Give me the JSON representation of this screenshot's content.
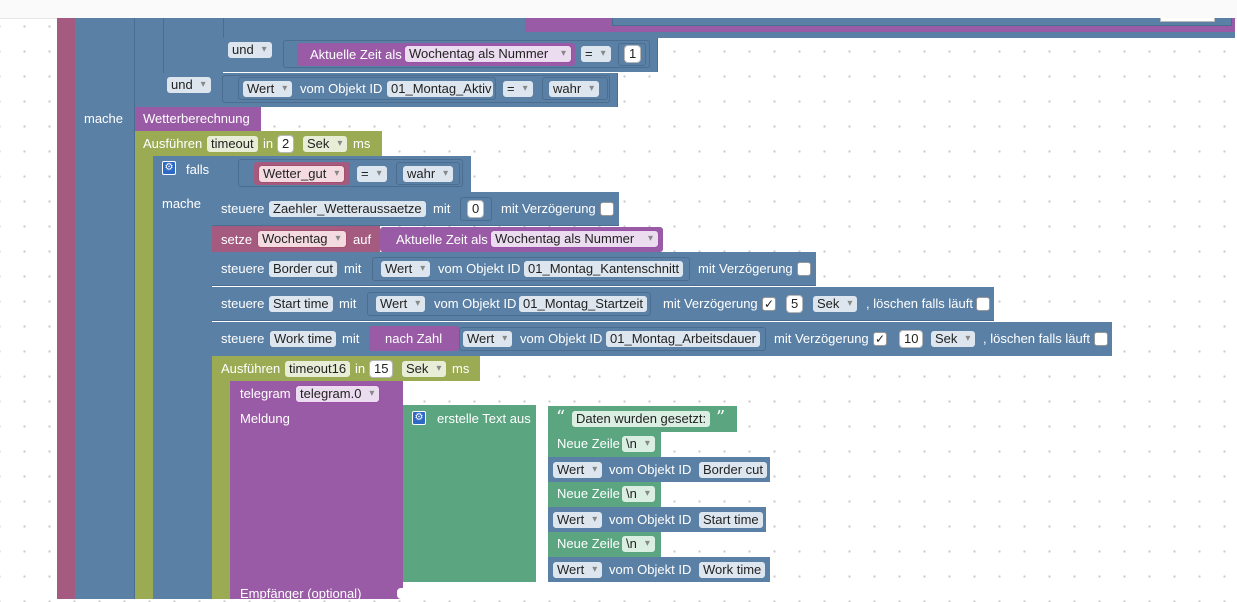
{
  "colors": {
    "logic": "#5b80a5",
    "timer": "#9aab54",
    "function": "#995ba5",
    "variable": "#a55b80",
    "text": "#5ba580"
  },
  "icons": {
    "gear": "gear-icon",
    "dropdown": "chevron-down-icon"
  },
  "cond_und_wochentag": {
    "und": "und",
    "label": "Aktuelle Zeit als",
    "field": "Wochentag als Nummer",
    "op": "=",
    "value": "1"
  },
  "cond_und_aktiv": {
    "und": "und",
    "wert": "Wert",
    "objekt": "vom Objekt ID",
    "id": "01_Montag_Aktiv",
    "op": "=",
    "value": "wahr"
  },
  "mache_label": "mache",
  "wetter_call": "Wetterberechnung",
  "timeout1": {
    "label": "Ausführen",
    "name": "timeout",
    "in": "in",
    "value": "2",
    "unit": "Sek",
    "ms": "ms"
  },
  "falls": {
    "label": "falls",
    "var": "Wetter_gut",
    "op": "=",
    "value": "wahr",
    "mache": "mache"
  },
  "stmt_zaehler": {
    "steuere": "steuere",
    "obj": "Zaehler_Wetteraussaetze",
    "mit": "mit",
    "value": "0",
    "delay": "mit Verzögerung"
  },
  "stmt_setze": {
    "setze": "setze",
    "var": "Wochentag",
    "auf": "auf",
    "label": "Aktuelle Zeit als",
    "field": "Wochentag als Nummer"
  },
  "stmt_border": {
    "steuere": "steuere",
    "obj": "Border cut",
    "mit": "mit",
    "wert": "Wert",
    "objekt": "vom Objekt ID",
    "id": "01_Montag_Kantenschnitt",
    "delay": "mit Verzögerung"
  },
  "stmt_start": {
    "steuere": "steuere",
    "obj": "Start time",
    "mit": "mit",
    "wert": "Wert",
    "objekt": "vom Objekt ID",
    "id": "01_Montag_Startzeit",
    "delay": "mit Verzögerung",
    "check": "✓",
    "delay_value": "5",
    "unit": "Sek",
    "clear": ", löschen falls läuft"
  },
  "stmt_work": {
    "steuere": "steuere",
    "obj": "Work time",
    "mit": "mit",
    "nach_zahl": "nach Zahl",
    "wert": "Wert",
    "objekt": "vom Objekt ID",
    "id": "01_Montag_Arbeitsdauer",
    "delay": "mit Verzögerung",
    "check": "✓",
    "delay_value": "10",
    "unit": "Sek",
    "clear": ", löschen falls läuft"
  },
  "timeout16": {
    "label": "Ausführen",
    "name": "timeout16",
    "in": "in",
    "value": "15",
    "unit": "Sek",
    "ms": "ms"
  },
  "telegram": {
    "label": "telegram",
    "instance": "telegram.0",
    "meldung": "Meldung",
    "empfaenger": "Empfänger (optional)"
  },
  "text_join": {
    "label": "erstelle Text aus",
    "quote_open": "“",
    "quote_close": "”",
    "text": "Daten wurden gesetzt:",
    "newline_label": "Neue Zeile",
    "newline": "\\n",
    "wert": "Wert",
    "objekt": "vom Objekt ID",
    "ids": [
      "Border cut",
      "Start time",
      "Work time"
    ]
  }
}
